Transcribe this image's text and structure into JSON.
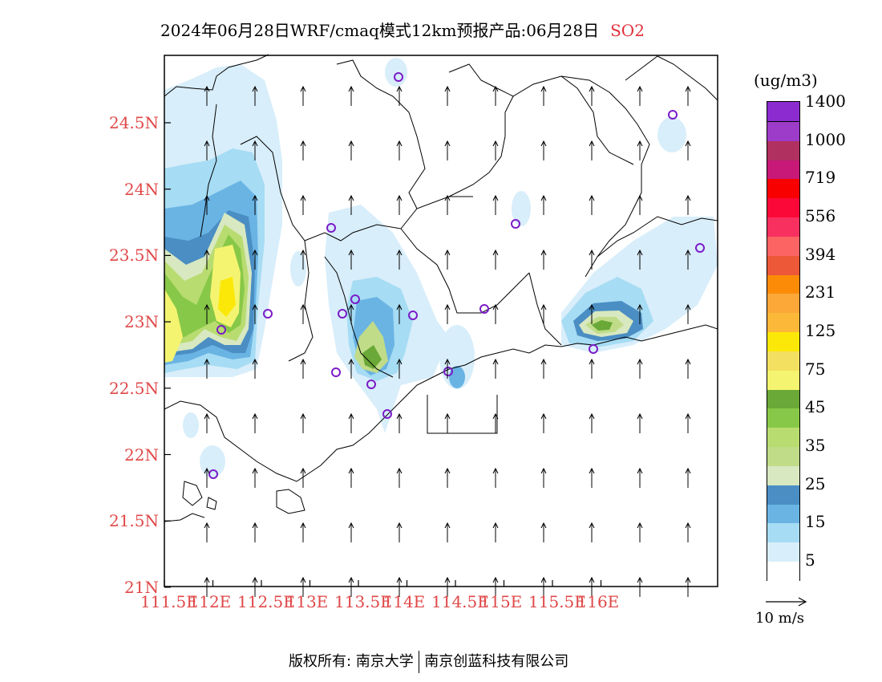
{
  "title": {
    "text": "2024年06月28日WRF/cmaq模式12km预报产品:06月28日",
    "species": "SO2"
  },
  "units": "(ug/m3)",
  "colorbar": {
    "colors": [
      "#ffffff",
      "#d8eefa",
      "#a6dcf4",
      "#6ab4e4",
      "#4a8ec4",
      "#d8e8c0",
      "#c0dc88",
      "#b8dc70",
      "#88c848",
      "#6aa838",
      "#f4f470",
      "#f4e060",
      "#fce808",
      "#fcb838",
      "#fca838",
      "#fc8c08",
      "#ec5838",
      "#fc6464",
      "#f83060",
      "#fc0838",
      "#f80000",
      "#c81878",
      "#b03060",
      "#9c3cc8",
      "#8c2cd0"
    ],
    "labels": [
      "5",
      "15",
      "25",
      "35",
      "45",
      "75",
      "125",
      "231",
      "394",
      "556",
      "719",
      "1000",
      "1400"
    ]
  },
  "map": {
    "lat_labels": [
      "24.5N",
      "24N",
      "23.5N",
      "23N",
      "22.5N",
      "22N",
      "21.5N",
      "21N"
    ],
    "lon_labels": [
      "111.5E",
      "112E",
      "112.5E",
      "113E",
      "113.5E",
      "114E",
      "114.5E",
      "115E",
      "115.5E",
      "116E"
    ],
    "wind_direction": "north",
    "wind_reference": "10 m/s"
  },
  "footer": {
    "left": "版权所有: 南京大学",
    "right": "南京创蓝科技有限公司"
  }
}
